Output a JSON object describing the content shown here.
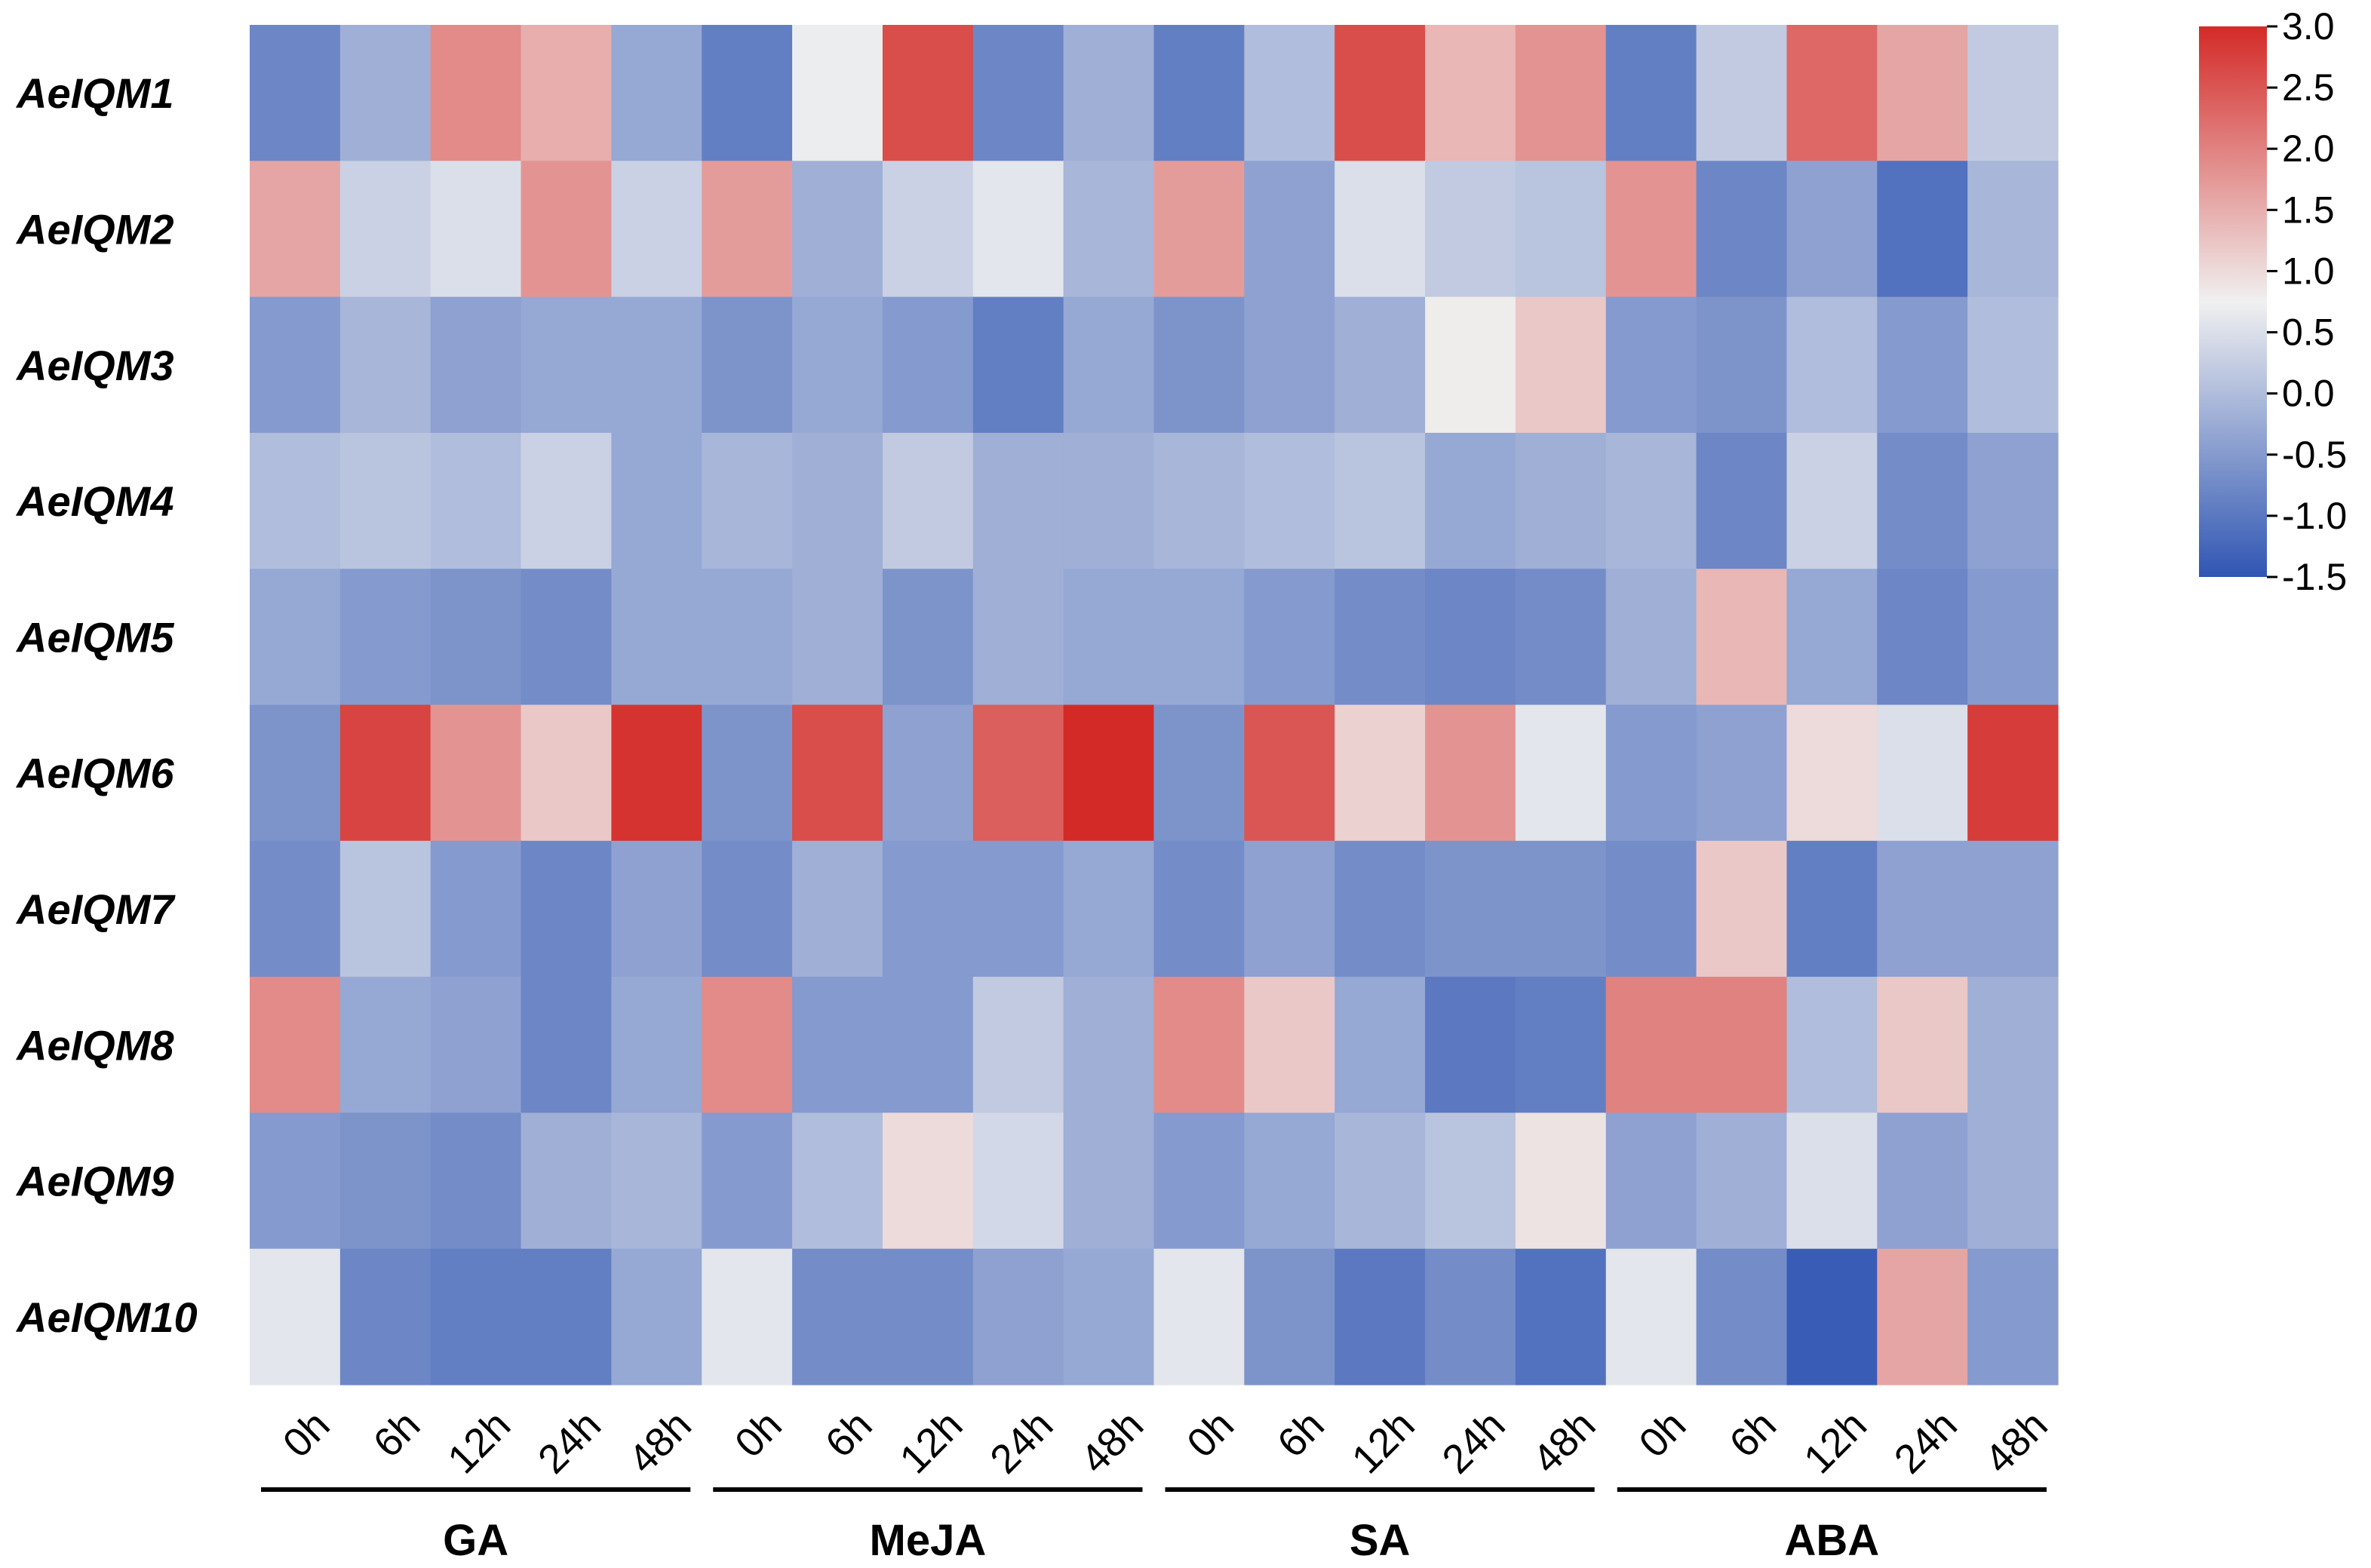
{
  "chart_data": {
    "type": "heatmap",
    "title": "",
    "xlabel": "",
    "ylabel": "",
    "rows": [
      "AeIQM1",
      "AeIQM2",
      "AeIQM3",
      "AeIQM4",
      "AeIQM5",
      "AeIQM6",
      "AeIQM7",
      "AeIQM8",
      "AeIQM9",
      "AeIQM10"
    ],
    "time_points": [
      "0h",
      "6h",
      "12h",
      "24h",
      "48h"
    ],
    "groups": [
      "GA",
      "MeJA",
      "SA",
      "ABA"
    ],
    "values": [
      [
        -0.8,
        -0.2,
        1.9,
        1.5,
        -0.3,
        -0.9,
        0.7,
        2.6,
        -0.8,
        -0.2,
        -0.9,
        0.0,
        2.6,
        1.4,
        1.8,
        -0.9,
        0.2,
        2.3,
        1.6,
        0.2
      ],
      [
        1.6,
        0.3,
        0.5,
        1.8,
        0.3,
        1.7,
        -0.2,
        0.3,
        0.6,
        -0.1,
        1.7,
        -0.4,
        0.5,
        0.2,
        0.1,
        1.8,
        -0.8,
        -0.4,
        -1.1,
        -0.1
      ],
      [
        -0.5,
        -0.1,
        -0.4,
        -0.3,
        -0.3,
        -0.6,
        -0.3,
        -0.5,
        -0.9,
        -0.3,
        -0.6,
        -0.4,
        -0.2,
        0.8,
        1.2,
        -0.5,
        -0.6,
        0.0,
        -0.5,
        0.0
      ],
      [
        0.0,
        0.1,
        0.0,
        0.3,
        -0.3,
        -0.1,
        -0.2,
        0.2,
        -0.2,
        -0.2,
        -0.1,
        0.0,
        0.1,
        -0.3,
        -0.2,
        -0.1,
        -0.8,
        0.3,
        -0.7,
        -0.4
      ],
      [
        -0.3,
        -0.5,
        -0.6,
        -0.7,
        -0.3,
        -0.3,
        -0.2,
        -0.6,
        -0.2,
        -0.3,
        -0.3,
        -0.5,
        -0.7,
        -0.8,
        -0.7,
        -0.2,
        1.4,
        -0.3,
        -0.8,
        -0.5
      ],
      [
        -0.6,
        2.7,
        1.8,
        1.2,
        2.9,
        -0.6,
        2.6,
        -0.4,
        2.4,
        3.0,
        -0.6,
        2.5,
        1.1,
        1.8,
        0.6,
        -0.5,
        -0.4,
        1.0,
        0.5,
        2.8
      ],
      [
        -0.7,
        0.1,
        -0.5,
        -0.8,
        -0.4,
        -0.7,
        -0.2,
        -0.5,
        -0.5,
        -0.3,
        -0.7,
        -0.4,
        -0.7,
        -0.6,
        -0.6,
        -0.7,
        1.2,
        -0.9,
        -0.4,
        -0.4
      ],
      [
        1.9,
        -0.3,
        -0.4,
        -0.8,
        -0.3,
        1.9,
        -0.5,
        -0.5,
        0.2,
        -0.2,
        1.9,
        1.2,
        -0.3,
        -1.0,
        -0.9,
        2.0,
        2.0,
        0.0,
        1.2,
        -0.2
      ],
      [
        -0.5,
        -0.6,
        -0.7,
        -0.2,
        -0.1,
        -0.5,
        0.0,
        1.0,
        0.4,
        -0.2,
        -0.5,
        -0.3,
        -0.1,
        0.1,
        0.9,
        -0.4,
        -0.2,
        0.5,
        -0.4,
        -0.2
      ],
      [
        0.6,
        -0.8,
        -0.9,
        -0.9,
        -0.3,
        0.6,
        -0.7,
        -0.7,
        -0.4,
        -0.3,
        0.6,
        -0.6,
        -1.0,
        -0.7,
        -1.1,
        0.6,
        -0.7,
        -1.4,
        1.6,
        -0.5
      ]
    ],
    "colorbar": {
      "min": -1.5,
      "max": 3.0,
      "ticks": [
        "3.0",
        "2.5",
        "2.0",
        "1.5",
        "1.0",
        "0.5",
        "0.0",
        "-0.5",
        "-1.0",
        "-1.5"
      ],
      "tick_values": [
        3.0,
        2.5,
        2.0,
        1.5,
        1.0,
        0.5,
        0.0,
        -0.5,
        -1.0,
        -1.5
      ],
      "colors": {
        "low": "#3056b3",
        "mid": "#f0f0f0",
        "high": "#d42a27"
      },
      "mid_value": 0.75
    }
  }
}
